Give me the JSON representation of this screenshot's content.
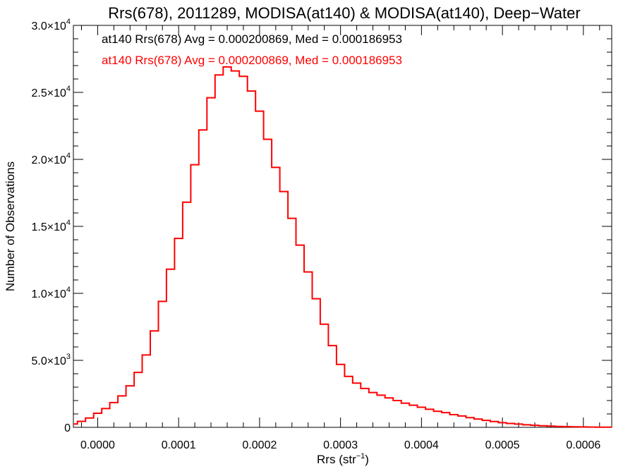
{
  "chart_data": {
    "type": "line",
    "title": "Rrs(678), 2011289, MODISA(at140) & MODISA(at140), Deep−Water",
    "xlabel_main": "Rrs (str",
    "xlabel_sup": "−1",
    "xlabel_end": ")",
    "ylabel": "Number of Observations",
    "xlim": [
      -3e-05,
      0.000635
    ],
    "ylim": [
      0,
      30000
    ],
    "x_ticks": [
      {
        "value": 0.0,
        "label": "0.0000"
      },
      {
        "value": 0.0001,
        "label": "0.0001"
      },
      {
        "value": 0.0002,
        "label": "0.0002"
      },
      {
        "value": 0.0003,
        "label": "0.0003"
      },
      {
        "value": 0.0004,
        "label": "0.0004"
      },
      {
        "value": 0.0005,
        "label": "0.0005"
      },
      {
        "value": 0.0006,
        "label": "0.0006"
      }
    ],
    "y_ticks": [
      {
        "value": 0,
        "mant": "0",
        "exp": ""
      },
      {
        "value": 5000,
        "mant": "5.0×10",
        "exp": "3"
      },
      {
        "value": 10000,
        "mant": "1.0×10",
        "exp": "4"
      },
      {
        "value": 15000,
        "mant": "1.5×10",
        "exp": "4"
      },
      {
        "value": 20000,
        "mant": "2.0×10",
        "exp": "4"
      },
      {
        "value": 25000,
        "mant": "2.5×10",
        "exp": "4"
      },
      {
        "value": 30000,
        "mant": "3.0×10",
        "exp": "4"
      }
    ],
    "annotations": [
      {
        "text": "at140 Rrs(678) Avg = 0.000200869, Med = 0.000186953",
        "color": "#000000"
      },
      {
        "text": "at140 Rrs(678) Avg = 0.000200869, Med = 0.000186953",
        "color": "#ff0000"
      }
    ],
    "series": [
      {
        "color": "#ff0000",
        "style": "step",
        "x": [
          -3e-05,
          -2e-05,
          -1e-05,
          0.0,
          1e-05,
          2e-05,
          3e-05,
          4e-05,
          5e-05,
          6e-05,
          7e-05,
          8e-05,
          9e-05,
          0.0001,
          0.00011,
          0.00012,
          0.00013,
          0.00014,
          0.00015,
          0.00016,
          0.00017,
          0.00018,
          0.00019,
          0.0002,
          0.00021,
          0.00022,
          0.00023,
          0.00024,
          0.00025,
          0.00026,
          0.00027,
          0.00028,
          0.00029,
          0.0003,
          0.00031,
          0.00032,
          0.00033,
          0.00034,
          0.00035,
          0.00036,
          0.00037,
          0.00038,
          0.00039,
          0.0004,
          0.00041,
          0.00042,
          0.00043,
          0.00044,
          0.00045,
          0.00046,
          0.00047,
          0.00048,
          0.00049,
          0.0005,
          0.00051,
          0.00052,
          0.00053,
          0.00054,
          0.00055,
          0.00056,
          0.00057,
          0.00058,
          0.00059,
          0.0006,
          0.00061,
          0.00062,
          0.00063
        ],
        "values": [
          250,
          450,
          700,
          1050,
          1400,
          1850,
          2350,
          3100,
          4100,
          5400,
          7200,
          9400,
          11800,
          14100,
          16800,
          19600,
          22200,
          24600,
          26300,
          26900,
          26600,
          26200,
          25100,
          23600,
          21500,
          19400,
          17600,
          15600,
          13600,
          11600,
          9600,
          7700,
          6100,
          4700,
          3800,
          3300,
          2900,
          2600,
          2400,
          2200,
          2000,
          1800,
          1650,
          1500,
          1350,
          1200,
          1100,
          950,
          850,
          720,
          620,
          520,
          430,
          350,
          290,
          240,
          190,
          150,
          120,
          95,
          70,
          55,
          40,
          30,
          20,
          15,
          10
        ]
      }
    ]
  }
}
